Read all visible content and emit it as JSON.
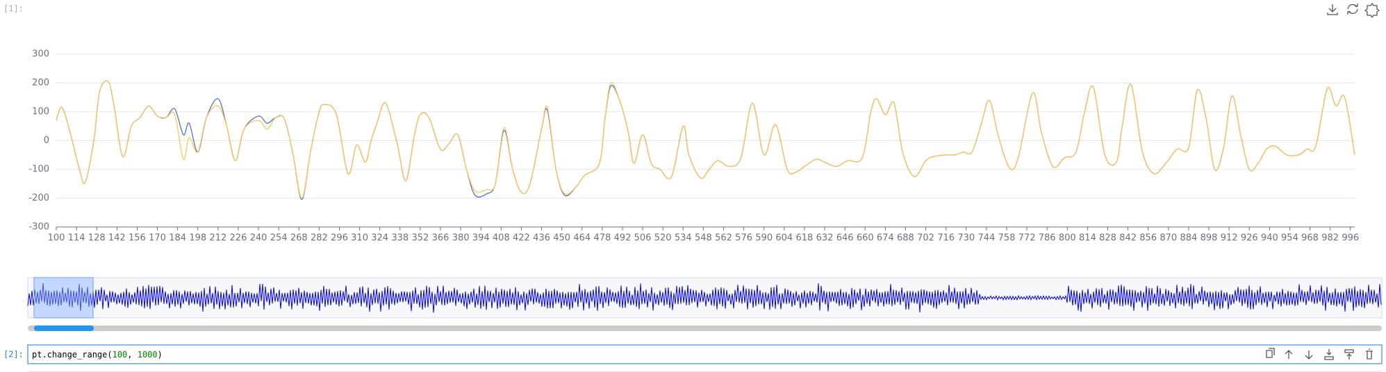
{
  "cells": [
    {
      "prompt": "[1]:"
    },
    {
      "prompt": "[2]:",
      "code": [
        "pt.change_range(",
        "100",
        ", ",
        "1000",
        ")"
      ]
    }
  ],
  "chart_data": {
    "type": "line",
    "x": [
      100,
      104,
      110,
      116,
      120,
      126,
      130,
      136,
      140,
      146,
      152,
      158,
      164,
      170,
      176,
      182,
      188,
      192,
      198,
      204,
      212,
      218,
      224,
      230,
      240,
      246,
      252,
      258,
      264,
      270,
      276,
      282,
      286,
      294,
      302,
      308,
      314,
      318,
      322,
      328,
      336,
      342,
      348,
      352,
      358,
      366,
      372,
      378,
      384,
      390,
      398,
      404,
      410,
      416,
      422,
      428,
      436,
      440,
      446,
      452,
      460,
      466,
      476,
      480,
      484,
      490,
      496,
      500,
      506,
      512,
      518,
      526,
      534,
      538,
      546,
      552,
      558,
      566,
      574,
      582,
      590,
      598,
      606,
      612,
      618,
      626,
      632,
      640,
      648,
      658,
      664,
      668,
      674,
      680,
      686,
      694,
      702,
      708,
      716,
      722,
      728,
      734,
      740,
      746,
      752,
      760,
      766,
      776,
      782,
      790,
      798,
      806,
      812,
      818,
      826,
      834,
      838,
      844,
      852,
      860,
      868,
      876,
      884,
      890,
      896,
      902,
      908,
      914,
      920,
      926,
      932,
      938,
      944,
      952,
      960,
      966,
      972,
      980,
      986,
      992,
      999
    ],
    "series": [
      {
        "color": "#5470c6",
        "values": [
          70,
          115,
          20,
          -100,
          -145,
          0,
          170,
          205,
          120,
          -55,
          50,
          80,
          120,
          85,
          80,
          110,
          20,
          60,
          -40,
          80,
          145,
          50,
          -70,
          40,
          85,
          60,
          80,
          75,
          -50,
          -205,
          -40,
          100,
          125,
          90,
          -115,
          -15,
          -75,
          0,
          60,
          130,
          -10,
          -140,
          20,
          90,
          80,
          -30,
          -10,
          20,
          -100,
          -190,
          -185,
          -150,
          35,
          -100,
          -180,
          -150,
          40,
          105,
          -100,
          -190,
          -160,
          -120,
          -80,
          80,
          190,
          140,
          30,
          -80,
          20,
          -80,
          -100,
          -125,
          50,
          -50,
          -130,
          -100,
          -70,
          -90,
          -60,
          130,
          -50,
          55,
          -100,
          -110,
          -90,
          -65,
          -75,
          -90,
          -70,
          -60,
          100,
          145,
          90,
          130,
          -40,
          -125,
          -70,
          -55,
          -50,
          -50,
          -40,
          -40,
          50,
          140,
          20,
          -95,
          -60,
          165,
          30,
          -90,
          -60,
          -40,
          100,
          185,
          -50,
          -75,
          50,
          195,
          -40,
          -115,
          -80,
          -30,
          -25,
          175,
          80,
          -100,
          -30,
          155,
          20,
          -100,
          -80,
          -30,
          -20,
          -50,
          -50,
          -30,
          -20,
          180,
          120,
          150,
          -50
        ]
      },
      {
        "color": "#fac858",
        "values": [
          70,
          115,
          20,
          -100,
          -145,
          0,
          170,
          205,
          120,
          -55,
          50,
          80,
          120,
          85,
          80,
          90,
          -65,
          10,
          -40,
          80,
          120,
          50,
          -70,
          40,
          70,
          40,
          80,
          75,
          -50,
          -200,
          -40,
          100,
          125,
          90,
          -115,
          -15,
          -75,
          0,
          60,
          130,
          -10,
          -140,
          20,
          90,
          80,
          -30,
          -10,
          20,
          -100,
          -175,
          -170,
          -150,
          45,
          -100,
          -180,
          -150,
          40,
          115,
          -100,
          -185,
          -160,
          -120,
          -80,
          80,
          200,
          140,
          30,
          -80,
          20,
          -80,
          -100,
          -125,
          50,
          -50,
          -130,
          -100,
          -70,
          -90,
          -60,
          130,
          -50,
          55,
          -100,
          -110,
          -90,
          -65,
          -75,
          -90,
          -70,
          -60,
          100,
          145,
          90,
          130,
          -40,
          -125,
          -70,
          -55,
          -50,
          -50,
          -40,
          -40,
          50,
          140,
          20,
          -95,
          -60,
          165,
          30,
          -90,
          -60,
          -40,
          100,
          185,
          -50,
          -75,
          50,
          195,
          -40,
          -115,
          -80,
          -30,
          -25,
          175,
          80,
          -100,
          -30,
          155,
          20,
          -100,
          -80,
          -30,
          -20,
          -50,
          -50,
          -30,
          -20,
          180,
          120,
          150,
          -50
        ]
      }
    ],
    "xlim": [
      100,
      999
    ],
    "xticks": [
      100,
      114,
      128,
      142,
      156,
      170,
      184,
      198,
      212,
      226,
      240,
      254,
      268,
      282,
      296,
      310,
      324,
      338,
      352,
      366,
      380,
      394,
      408,
      422,
      436,
      450,
      464,
      478,
      492,
      506,
      520,
      534,
      548,
      562,
      576,
      590,
      604,
      618,
      632,
      646,
      660,
      674,
      688,
      702,
      716,
      730,
      744,
      758,
      772,
      786,
      800,
      814,
      828,
      842,
      856,
      870,
      884,
      898,
      912,
      926,
      940,
      954,
      968,
      982,
      996
    ],
    "ylim": [
      -300,
      300
    ],
    "yticks": [
      -300,
      -200,
      -100,
      0,
      100,
      200,
      300
    ],
    "grid": true
  }
}
